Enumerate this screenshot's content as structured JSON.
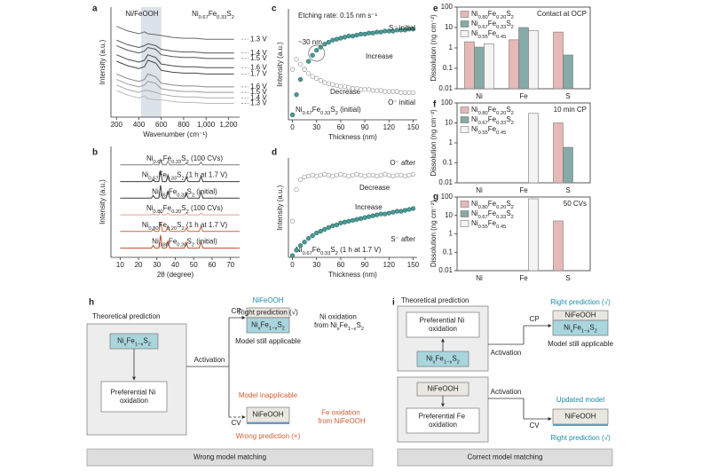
{
  "chart_data": [
    {
      "panel": "a",
      "type": "line",
      "xlabel": "Wavenumber (cm⁻¹)",
      "ylabel": "Intensity (a.u.)",
      "annotations": [
        "Ni/FeOOH",
        "Ni0.67Fe0.33S2"
      ],
      "highlight": [
        420,
        600
      ],
      "x": [
        200,
        300,
        400,
        450,
        480,
        550,
        600,
        700,
        800,
        900,
        1000,
        1100,
        1200,
        1250
      ],
      "xlim": [
        150,
        1300
      ],
      "xticks": [
        200,
        400,
        600,
        800,
        {
          "value": 1000,
          "label": "1,000"
        },
        {
          "value": 1200,
          "label": "1,200"
        }
      ],
      "ylim": [
        0,
        120
      ],
      "series_labels": "end",
      "series": [
        {
          "name": "1.3 V",
          "color": "#6a6a6a",
          "values": [
            99,
            94,
            91,
            93,
            91,
            90,
            89,
            87,
            86,
            86,
            85,
            85,
            85,
            85
          ]
        },
        {
          "name": "1.4 V",
          "color": "#555555",
          "values": [
            84,
            79,
            76,
            78,
            80,
            78,
            74,
            72,
            71,
            71,
            70,
            70,
            70,
            70
          ]
        },
        {
          "name": "1.5 V",
          "color": "#555555",
          "values": [
            78,
            73,
            70,
            72,
            76,
            74,
            68,
            66,
            65,
            65,
            64,
            64,
            64,
            64
          ]
        },
        {
          "name": "1.6 V",
          "color": "#4a4a4a",
          "values": [
            68,
            63,
            60,
            62,
            68,
            65,
            58,
            56,
            55,
            55,
            54,
            54,
            54,
            54
          ]
        },
        {
          "name": "1.7 V",
          "color": "#444444",
          "values": [
            61,
            56,
            53,
            55,
            62,
            59,
            51,
            49,
            48,
            48,
            47,
            47,
            47,
            47
          ]
        },
        {
          "name": "1.6 V",
          "color": "#8a8a8a",
          "values": [
            47,
            42,
            39,
            41,
            47,
            44,
            37,
            35,
            34,
            34,
            33,
            33,
            33,
            33
          ]
        },
        {
          "name": "1.5 V",
          "color": "#9a9a9a",
          "values": [
            41,
            36,
            33,
            35,
            39,
            37,
            31,
            29,
            28,
            28,
            27,
            27,
            27,
            27
          ]
        },
        {
          "name": "1.4 V",
          "color": "#aaaaaa",
          "values": [
            35,
            30,
            27,
            29,
            29,
            27,
            25,
            23,
            22,
            22,
            21,
            21,
            21,
            21
          ]
        },
        {
          "name": "1.3 V",
          "color": "#bbbbbb",
          "values": [
            29,
            24,
            21,
            23,
            20,
            19,
            19,
            17,
            16,
            16,
            15,
            15,
            15,
            15
          ]
        }
      ]
    },
    {
      "panel": "b",
      "type": "line",
      "xlabel": "2θ (degree)",
      "ylabel": "Intensity (a.u.)",
      "x": [
        10,
        20,
        27,
        28,
        29,
        31,
        32,
        33,
        35,
        36,
        37,
        45,
        46,
        47,
        53,
        54,
        55,
        62,
        75
      ],
      "xlim": [
        5,
        75
      ],
      "xticks": [
        10,
        20,
        30,
        40,
        50,
        60,
        70
      ],
      "ylim": [
        0,
        120
      ],
      "series_labels": "above",
      "series": [
        {
          "name": "Ni0.67Fe0.33S2 (100 CVs)",
          "color": "#7a7a7a",
          "values": [
            100,
            100,
            100,
            101,
            100,
            100,
            106,
            100,
            100,
            104,
            100,
            100,
            102,
            100,
            100,
            103,
            100,
            100,
            100
          ]
        },
        {
          "name": "Ni0.67Fe0.33S2 (1 h at 1.7 V)",
          "color": "#3c3c3c",
          "values": [
            82,
            82,
            82,
            84,
            82,
            82,
            94,
            82,
            82,
            89,
            82,
            82,
            87,
            82,
            82,
            88,
            82,
            82,
            82
          ]
        },
        {
          "name": "Ni0.67Fe0.33S2 (initial)",
          "color": "#3c3c3c",
          "values": [
            64,
            64,
            64,
            67,
            64,
            64,
            78,
            64,
            64,
            72,
            64,
            64,
            70,
            64,
            64,
            71,
            64,
            64,
            64
          ]
        },
        {
          "name": "Ni0.80Fe0.20S2 (100 CVs)",
          "color": "#e0a58a",
          "values": [
            46,
            46,
            46,
            47,
            46,
            46,
            50,
            46,
            46,
            48,
            46,
            46,
            48,
            46,
            46,
            48,
            46,
            46,
            46
          ]
        },
        {
          "name": "Ni0.80Fe0.20S2 (1 h at 1.7 V)",
          "color": "#c8643c",
          "values": [
            28,
            28,
            28,
            30,
            28,
            28,
            38,
            28,
            28,
            34,
            28,
            28,
            32,
            28,
            28,
            33,
            28,
            28,
            28
          ]
        },
        {
          "name": "Ni0.80Fe0.20S2 (initial)",
          "color": "#b84a2a",
          "values": [
            10,
            10,
            10,
            13,
            10,
            10,
            24,
            10,
            10,
            18,
            10,
            10,
            16,
            10,
            10,
            17,
            10,
            10,
            10
          ]
        }
      ]
    },
    {
      "panel": "c",
      "type": "scatter",
      "xlabel": "Thickness (nm)",
      "ylabel": "Intensity (a.u.)",
      "annotations": [
        "Etching rate: 0.15 nm s⁻¹",
        "~30 nm",
        "Increase",
        "Decrease",
        "Ni0.67Fe0.33S2 (initial)"
      ],
      "x": [
        0,
        5,
        10,
        15,
        20,
        25,
        30,
        35,
        40,
        45,
        50,
        55,
        60,
        65,
        70,
        75,
        80,
        85,
        90,
        95,
        100,
        105,
        110,
        115,
        120,
        125,
        130,
        135,
        140,
        145,
        150
      ],
      "xlim": [
        -5,
        155
      ],
      "xticks": [
        0,
        30,
        60,
        90,
        120,
        150
      ],
      "ylim": [
        0,
        110
      ],
      "series": [
        {
          "name": "S⁻ initial",
          "color": "#4c9c96",
          "marker": "filled",
          "values": [
            5,
            25,
            40,
            50,
            58,
            64,
            69,
            72,
            75,
            77,
            79,
            80,
            81,
            82,
            83,
            83,
            84,
            85,
            85,
            86,
            86,
            87,
            87,
            88,
            88,
            88,
            89,
            89,
            89,
            90,
            90
          ]
        },
        {
          "name": "O⁻ initial",
          "color": "#9a9a9a",
          "marker": "open",
          "values": [
            50,
            60,
            55,
            50,
            46,
            43,
            41,
            39,
            37,
            36,
            35,
            34,
            33,
            33,
            32,
            31,
            31,
            30,
            30,
            30,
            29,
            29,
            29,
            28,
            28,
            28,
            28,
            27,
            27,
            27,
            27
          ]
        }
      ]
    },
    {
      "panel": "d",
      "type": "scatter",
      "xlabel": "Thickness (nm)",
      "ylabel": "Intensity (a.u.)",
      "annotations": [
        "Decrease",
        "Increase",
        "Ni0.67Fe0.33S2 (1 h at 1.7 V)"
      ],
      "x": [
        0,
        5,
        10,
        15,
        20,
        25,
        30,
        35,
        40,
        45,
        50,
        55,
        60,
        65,
        70,
        75,
        80,
        85,
        90,
        95,
        100,
        105,
        110,
        115,
        120,
        125,
        130,
        135,
        140,
        145,
        150
      ],
      "xlim": [
        -5,
        155
      ],
      "xticks": [
        0,
        30,
        60,
        90,
        120,
        150
      ],
      "ylim": [
        0,
        110
      ],
      "series": [
        {
          "name": "O⁻ after",
          "color": "#9a9a9a",
          "marker": "open",
          "values": [
            40,
            75,
            86,
            89,
            90,
            91,
            90,
            91,
            92,
            91,
            90,
            91,
            92,
            91,
            90,
            91,
            92,
            91,
            90,
            91,
            91,
            90,
            91,
            92,
            91,
            90,
            91,
            91,
            90,
            91,
            92
          ]
        },
        {
          "name": "S⁻ after",
          "color": "#4c9c96",
          "marker": "filled",
          "values": [
            2,
            8,
            13,
            17,
            21,
            24,
            27,
            29,
            31,
            33,
            35,
            36,
            38,
            39,
            40,
            41,
            42,
            43,
            44,
            45,
            46,
            47,
            48,
            48,
            49,
            50,
            51,
            51,
            52,
            53,
            54
          ]
        }
      ]
    },
    {
      "panel": "e",
      "type": "bar",
      "ylabel": "Dissolution (ng cm⁻²)",
      "annotations": [
        "Contact at OCP"
      ],
      "categories": [
        "Ni",
        "Fe",
        "S"
      ],
      "log": true,
      "ylim": [
        0.01,
        100
      ],
      "yticks": [
        0.01,
        0.1,
        1,
        10,
        100
      ],
      "legend": "top-left",
      "series": [
        {
          "name": "Ni0.80Fe0.20S2",
          "color": "#e7b9b6",
          "values": [
            2,
            2.5,
            6
          ]
        },
        {
          "name": "Ni0.67Fe0.33S2",
          "color": "#86aaa8",
          "values": [
            1.1,
            10,
            0.45
          ]
        },
        {
          "name": "Ni0.55Fe0.45",
          "color": "#f4f4f4",
          "values": [
            1.6,
            7,
            null
          ]
        }
      ]
    },
    {
      "panel": "f",
      "type": "bar",
      "ylabel": "Dissolution (ng cm⁻²)",
      "annotations": [
        "10 min CP"
      ],
      "categories": [
        "Ni",
        "Fe",
        "S"
      ],
      "log": true,
      "ylim": [
        0.01,
        100
      ],
      "yticks": [
        0.01,
        0.1,
        1,
        10,
        100
      ],
      "legend": "top-left",
      "series": [
        {
          "name": "Ni0.80Fe0.20S2",
          "color": "#e7b9b6",
          "values": [
            null,
            null,
            10
          ]
        },
        {
          "name": "Ni0.67Fe0.33S2",
          "color": "#86aaa8",
          "values": [
            null,
            null,
            0.6
          ]
        },
        {
          "name": "Ni0.55Fe0.45",
          "color": "#f4f4f4",
          "values": [
            null,
            30,
            null
          ]
        }
      ]
    },
    {
      "panel": "g",
      "type": "bar",
      "ylabel": "Dissolution (ng cm⁻²)",
      "annotations": [
        "50 CVs"
      ],
      "categories": [
        "Ni",
        "Fe",
        "S"
      ],
      "log": true,
      "ylim": [
        0.01,
        100
      ],
      "yticks": [
        0.01,
        0.1,
        1,
        10,
        100
      ],
      "legend": "top-left",
      "series": [
        {
          "name": "Ni0.80Fe0.20S2",
          "color": "#e7b9b6",
          "values": [
            null,
            null,
            5
          ]
        },
        {
          "name": "Ni0.67Fe0.33S2",
          "color": "#86aaa8",
          "values": [
            null,
            null,
            null
          ]
        },
        {
          "name": "Ni0.55Fe0.45",
          "color": "#f4f4f4",
          "values": [
            null,
            80,
            null
          ]
        }
      ]
    }
  ],
  "diagrams": [
    {
      "panel": "h",
      "texts": [
        "Theoretical prediction",
        "NixFe1−xS2",
        "Preferential Ni oxidation",
        "Activation",
        "CP",
        "Right prediction (√)",
        "NiFeOOH",
        "NixFe1−xS2",
        "Model still applicable",
        "Ni oxidation from NixFe1−xS2",
        "Model inapplicable",
        "CV",
        "NiFeOOH",
        "Fe oxidation from NiFeOOH",
        "Wrong prediction (×)",
        "Wrong model matching"
      ]
    },
    {
      "panel": "i",
      "texts": [
        "Theoretical prediction",
        "Preferential Ni oxidation",
        "NixFe1−xS2",
        "Activation",
        "CP",
        "Right prediction (√)",
        "NiFeOOH",
        "NixFe1−xS2",
        "Model still applicable",
        "NiFeOOH",
        "Preferential Fe oxidation",
        "Activation",
        "CV",
        "Updated model",
        "NiFeOOH",
        "Right prediction (√)",
        "Correct model matching"
      ]
    }
  ]
}
